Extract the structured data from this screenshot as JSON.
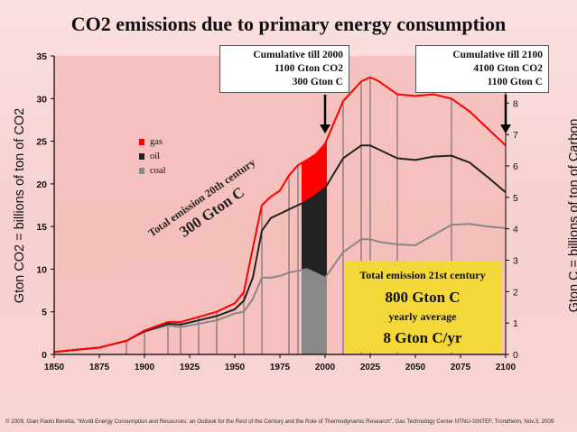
{
  "title": "CO2 emissions due to primary energy consumption",
  "footer": "© 2009, Gian Paolo Beretta, \"World Energy Consumption and Resources: an Outlook for the Rest of the Century and the Role of Thermodynamic Research\", Gas Technology Center NTNU-SINTEF, Trondheim, Nov.3, 2009",
  "left_axis_label": "Gton CO2 = billions of ton of CO2",
  "right_axis_label": "Gton C = billions of ton of Carbon",
  "callout_2000": {
    "line1": "Cumulative till 2000",
    "line2": "1100 Gton CO2",
    "line3": "300 Gton C"
  },
  "callout_2100": {
    "line1": "Cumulative till 2100",
    "line2": "4100 Gton CO2",
    "line3": "1100 Gton C"
  },
  "legend": {
    "gas": "gas",
    "oil": "oil",
    "coal": "coal"
  },
  "diagonal_note": {
    "line1": "Total emission 20th century",
    "line2": "300 Gton C"
  },
  "yellow_box": {
    "line1": "Total emission 21st century",
    "line2": "800 Gton C",
    "line3": "yearly average",
    "line4": "8 Gton C/yr"
  },
  "colors": {
    "gas": "#ff0000",
    "oil": "#222222",
    "coal": "#888888",
    "highlight": "#f4d83a"
  },
  "chart_data": {
    "type": "area",
    "title": "CO2 emissions due to primary energy consumption",
    "xlabel": "",
    "ylabel": "Gton CO2 = billions of ton of CO2",
    "y2label": "Gton C = billions of ton of Carbon",
    "xlim": [
      1850,
      2100
    ],
    "ylim": [
      0,
      35
    ],
    "y2lim": [
      0,
      9.5
    ],
    "x_ticks": [
      1850,
      1875,
      1900,
      1925,
      1950,
      1975,
      2000,
      2025,
      2050,
      2075,
      2100
    ],
    "y_ticks": [
      0,
      5,
      10,
      15,
      20,
      25,
      30,
      35
    ],
    "y2_ticks": [
      0,
      1,
      2,
      3,
      4,
      5,
      6,
      7,
      8
    ],
    "x": [
      1850,
      1875,
      1890,
      1900,
      1913,
      1920,
      1930,
      1940,
      1950,
      1955,
      1960,
      1965,
      1970,
      1975,
      1980,
      1985,
      1990,
      1995,
      2000,
      2010,
      2020,
      2025,
      2030,
      2040,
      2050,
      2060,
      2070,
      2080,
      2090,
      2100
    ],
    "series": [
      {
        "name": "gas",
        "cumulative_total": true,
        "values": [
          0.3,
          0.8,
          1.6,
          2.8,
          3.8,
          3.8,
          4.4,
          5.0,
          6.0,
          7.3,
          12.5,
          17.5,
          18.5,
          19.2,
          21.0,
          22.2,
          22.8,
          23.5,
          24.7,
          29.7,
          32.0,
          32.5,
          32.0,
          30.5,
          30.3,
          30.5,
          30.0,
          28.5,
          26.5,
          24.5
        ]
      },
      {
        "name": "oil",
        "cumulative_total": true,
        "values": [
          0.3,
          0.8,
          1.6,
          2.7,
          3.6,
          3.5,
          4.0,
          4.5,
          5.3,
          6.3,
          9.0,
          14.5,
          16.0,
          16.5,
          17.0,
          17.5,
          18.0,
          18.7,
          19.5,
          23.0,
          24.5,
          24.5,
          24.0,
          23.0,
          22.8,
          23.2,
          23.3,
          22.5,
          20.8,
          19.0
        ]
      },
      {
        "name": "coal",
        "cumulative_total": true,
        "values": [
          0.3,
          0.8,
          1.6,
          2.7,
          3.4,
          3.2,
          3.6,
          4.0,
          4.8,
          5.0,
          6.5,
          9.0,
          9.0,
          9.2,
          9.6,
          9.8,
          10.0,
          9.5,
          9.0,
          12.0,
          13.5,
          13.5,
          13.2,
          12.9,
          12.8,
          14.0,
          15.2,
          15.3,
          15.0,
          14.8
        ]
      }
    ],
    "annotations": [
      "Cumulative till 2000",
      "Cumulative till 2100"
    ],
    "grid": false,
    "legend_position": "upper-left"
  }
}
